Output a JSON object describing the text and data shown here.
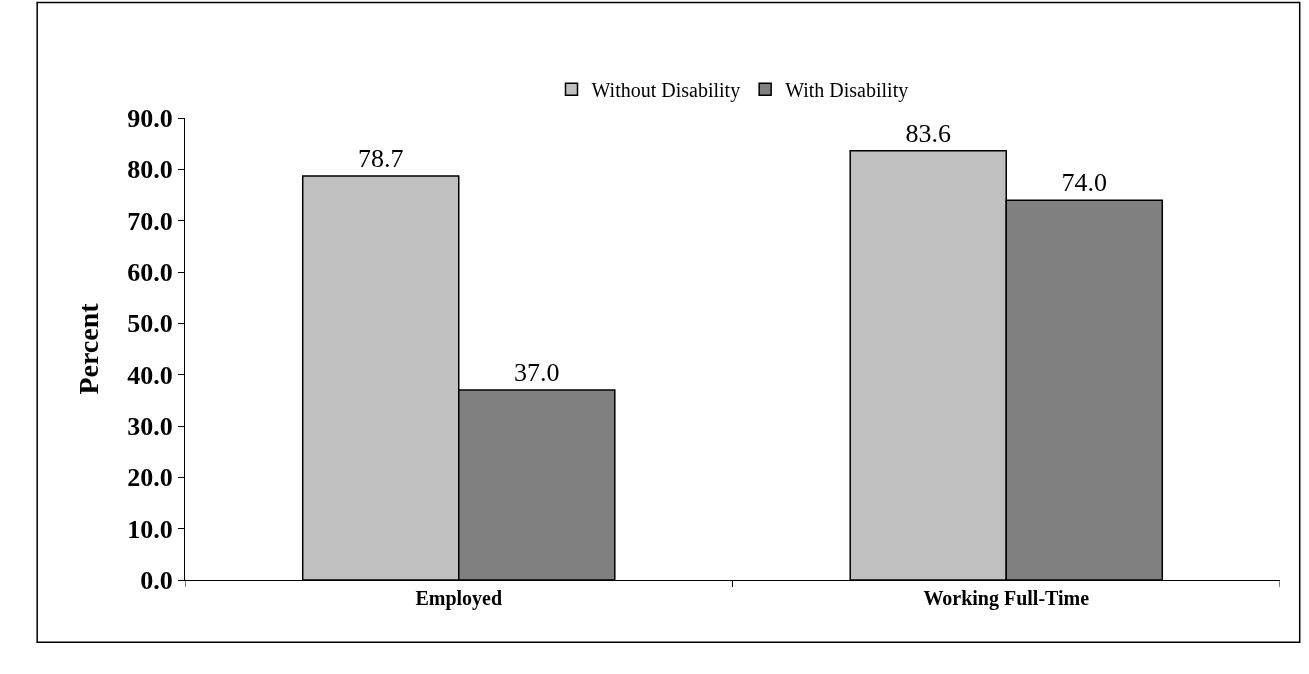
{
  "chart_data": {
    "type": "bar",
    "ylabel": "Percent",
    "categories": [
      "Employed",
      "Working Full-Time"
    ],
    "series": [
      {
        "name": "Without Disability",
        "color": "#c0c0c0",
        "values": [
          78.7,
          83.6
        ],
        "value_labels": [
          "78.7",
          "83.6"
        ]
      },
      {
        "name": "With Disability",
        "color": "#808080",
        "values": [
          37.0,
          74.0
        ],
        "value_labels": [
          "37.0",
          "74.0"
        ]
      }
    ],
    "ylim": [
      0,
      90
    ],
    "yticks": [
      {
        "value": 0,
        "label": "0.0"
      },
      {
        "value": 10,
        "label": "10.0"
      },
      {
        "value": 20,
        "label": "20.0"
      },
      {
        "value": 30,
        "label": "30.0"
      },
      {
        "value": 40,
        "label": "40.0"
      },
      {
        "value": 50,
        "label": "50.0"
      },
      {
        "value": 60,
        "label": "60.0"
      },
      {
        "value": 70,
        "label": "70.0"
      },
      {
        "value": 80,
        "label": "80.0"
      },
      {
        "value": 90,
        "label": "90.0"
      }
    ],
    "grid": false,
    "legend": "top"
  }
}
